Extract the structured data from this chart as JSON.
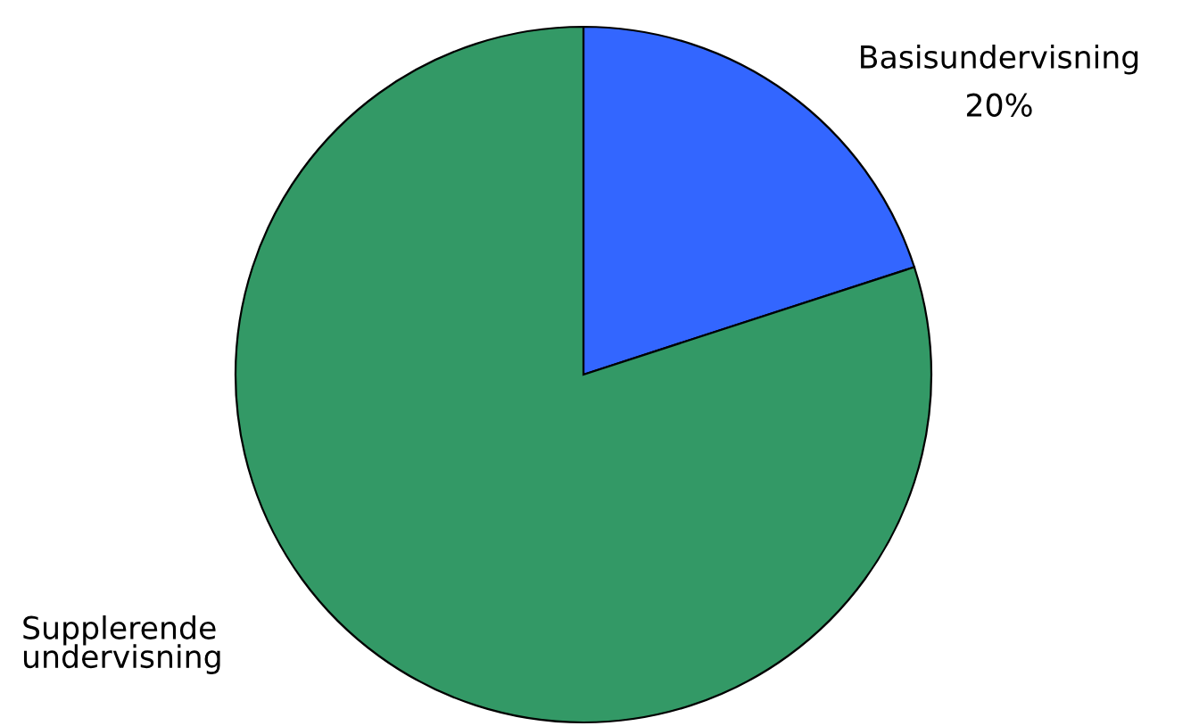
{
  "chart_data": {
    "type": "pie",
    "categories": [
      "Basisundervisning",
      "Supplerende\nundervisning"
    ],
    "values": [
      20,
      80
    ],
    "colors": [
      "#3366ff",
      "#339966"
    ],
    "value_labels": [
      "20%",
      null
    ]
  }
}
